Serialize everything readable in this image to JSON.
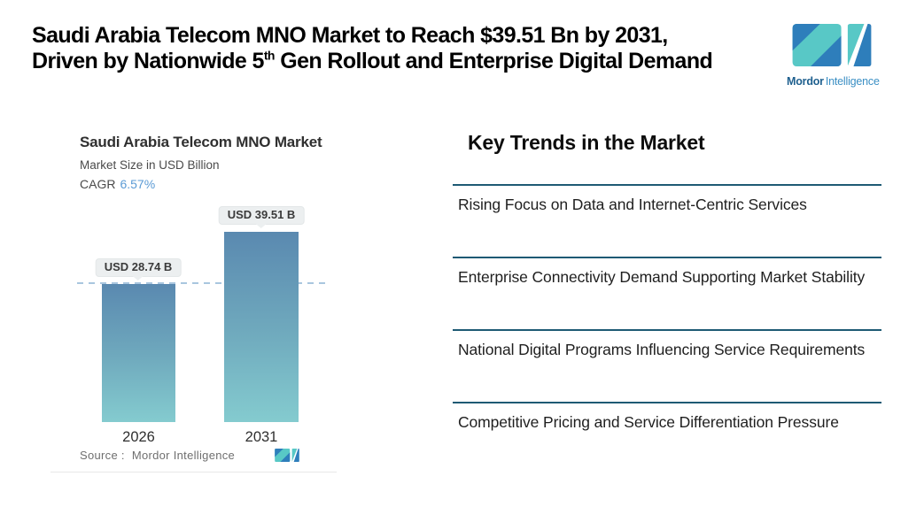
{
  "header": {
    "title_line1": "Saudi Arabia Telecom MNO Market to Reach $39.51 Bn by 2031,",
    "title_line2_pre": "Driven by Nationwide 5",
    "title_line2_sup": "th",
    "title_line2_post": " Gen Rollout and Enterprise Digital Demand"
  },
  "brand": {
    "name_bold": "Mordor",
    "name_regular": "Intelligence",
    "teal": "#58c8c6",
    "blue": "#2e7ebb"
  },
  "chart_data": {
    "type": "bar",
    "title": "Saudi Arabia Telecom MNO Market",
    "subtitle": "Market Size in USD Billion",
    "cagr_label": "CAGR",
    "cagr_value": "6.57%",
    "categories": [
      "2026",
      "2031"
    ],
    "values": [
      28.74,
      39.51
    ],
    "value_labels": [
      "USD 28.74 B",
      "USD 39.51 B"
    ],
    "unit": "USD Billion",
    "ylim": [
      0,
      44
    ],
    "reference_line_value": 28.74,
    "legend": "none",
    "grid": "off",
    "source_prefix": "Source :",
    "source_name": "Mordor Intelligence",
    "colors": {
      "bar_gradient_top": "#5a89b0",
      "bar_gradient_bottom": "#84cbcf",
      "dashed_line": "#a9c6df",
      "cagr_value": "#5b9bd5",
      "label_box_bg": "#eceff0"
    }
  },
  "trends": {
    "heading": "Key Trends in the Market",
    "divider_color": "#1e5a74",
    "items": [
      "Rising Focus on Data and Internet-Centric Services",
      "Enterprise Connectivity Demand Supporting Market Stability",
      "National Digital Programs Influencing Service Requirements",
      "Competitive Pricing and Service Differentiation Pressure"
    ]
  }
}
